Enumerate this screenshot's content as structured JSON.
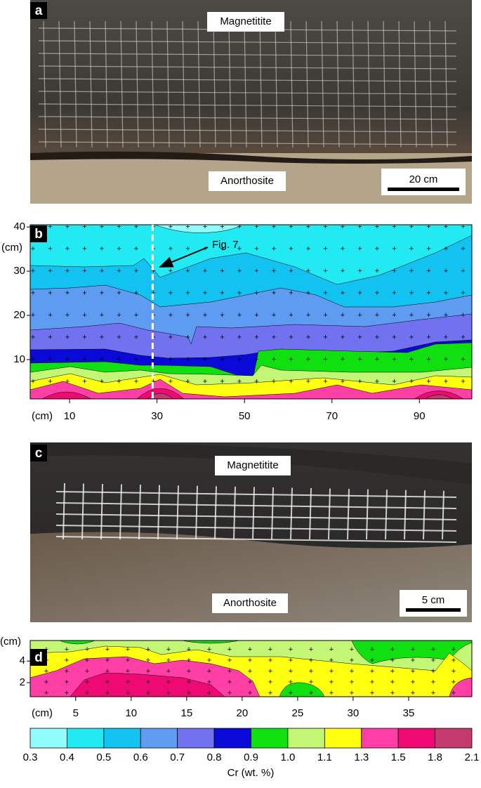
{
  "panel_a": {
    "label": "a",
    "top_label": "Magnetitite",
    "bottom_label": "Anorthosite",
    "scale_bar": "20 cm"
  },
  "panel_b": {
    "label": "b",
    "type": "contour",
    "xlim": [
      1,
      102
    ],
    "ylim": [
      1.1,
      40.5
    ],
    "xticks": [
      10,
      30,
      50,
      70,
      90
    ],
    "yticks": [
      10,
      20,
      30,
      40
    ],
    "x_unit": "(cm)",
    "y_unit": "(cm)",
    "marker_x": 29,
    "annotation": "Fig. 7"
  },
  "panel_c": {
    "label": "c",
    "top_label": "Magnetitite",
    "bottom_label": "Anorthosite",
    "scale_bar": "5 cm"
  },
  "panel_d": {
    "label": "d",
    "type": "contour",
    "xlim": [
      0.9,
      40.7
    ],
    "ylim": [
      0.7,
      5.9
    ],
    "xticks": [
      5,
      10,
      15,
      20,
      25,
      30,
      35
    ],
    "yticks": [
      2,
      4
    ],
    "x_unit": "(cm)",
    "y_unit": "(cm)"
  },
  "colorbar": {
    "levels": [
      0.3,
      0.4,
      0.5,
      0.6,
      0.7,
      0.8,
      0.9,
      {
        "value": 1,
        "label": "1.0"
      },
      1.1,
      1.3,
      1.5,
      1.8,
      2.1
    ],
    "colors": [
      "#90fcfc",
      "#22eaf2",
      "#12c2f0",
      "#5e9cf2",
      "#7272f0",
      "#0a0ad8",
      "#10e010",
      "#c4f676",
      "#ffff10",
      "#ff3ea6",
      "#ee0a72",
      "#c23a6e"
    ],
    "label": "Cr (wt. %)"
  }
}
